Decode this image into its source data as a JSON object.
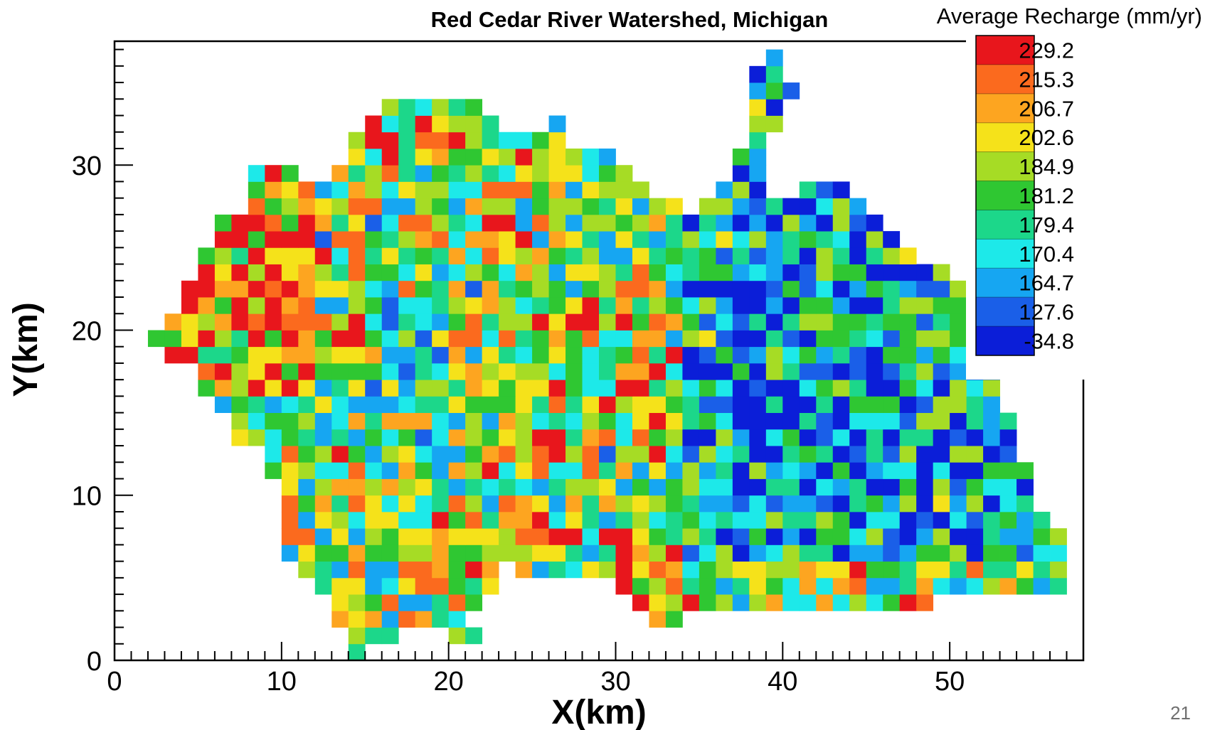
{
  "chart_data": {
    "type": "heatmap",
    "title": "Red Cedar River Watershed, Michigan",
    "xlabel": "X(km)",
    "ylabel": "Y(km)",
    "xlim": [
      0,
      58
    ],
    "ylim": [
      0,
      37.5
    ],
    "x_ticks": [
      0,
      10,
      20,
      30,
      40,
      50
    ],
    "y_ticks": [
      0,
      10,
      20,
      30
    ],
    "cell_size_km": 1,
    "legend": {
      "title": "Average Recharge (mm/yr)",
      "placement": "top-right",
      "levels": [
        "229.2",
        "215.3",
        "206.7",
        "202.6",
        "184.9",
        "181.2",
        "179.4",
        "170.4",
        "164.7",
        "127.6",
        "-34.8"
      ],
      "colors": [
        "#e8161c",
        "#fb6a1e",
        "#fda520",
        "#f5e21a",
        "#a6dc25",
        "#2fc732",
        "#1cd78a",
        "#1de9e9",
        "#16a6f2",
        "#1a5fe8",
        "#0b1ed8"
      ]
    },
    "outline": [
      [
        null,
        null,
        null,
        null,
        null,
        null,
        null,
        null,
        null,
        null,
        null,
        null,
        null,
        null,
        null,
        null,
        null,
        null,
        null,
        null,
        null,
        null,
        null,
        null,
        null,
        null,
        null,
        null,
        null,
        null,
        null,
        null,
        null,
        null,
        null,
        null,
        null,
        [
          39,
          39
        ]
      ],
      [
        null,
        null,
        null,
        null,
        null,
        null,
        null,
        null,
        null,
        null,
        null,
        null,
        null,
        null,
        null,
        null,
        null,
        null,
        null,
        null,
        null,
        null,
        null,
        null,
        null,
        null,
        null,
        null,
        null,
        null,
        null,
        null,
        null,
        null,
        null,
        null,
        null,
        [
          38,
          39
        ]
      ],
      [
        null,
        null,
        null,
        null,
        null,
        null,
        null,
        null,
        null,
        null,
        null,
        null,
        null,
        null,
        null,
        null,
        null,
        null,
        null,
        null,
        null,
        null,
        null,
        null,
        null,
        null,
        null,
        null,
        null,
        null,
        null,
        null,
        null,
        null,
        null,
        null,
        null,
        [
          38,
          40
        ]
      ],
      [
        null,
        null,
        null,
        null,
        null,
        null,
        null,
        null,
        null,
        null,
        null,
        null,
        null,
        null,
        null,
        null,
        null,
        null,
        null,
        null,
        null,
        null,
        null,
        null,
        null,
        null,
        null,
        null,
        null,
        null,
        null,
        null,
        null,
        null,
        null,
        null,
        null,
        [
          16,
          21
        ],
        [
          38,
          39
        ]
      ],
      [
        null,
        null,
        null,
        null,
        null,
        null,
        null,
        null,
        null,
        null,
        null,
        null,
        null,
        null,
        null,
        null,
        null,
        null,
        null,
        null,
        null,
        null,
        null,
        null,
        null,
        null,
        null,
        null,
        null,
        null,
        null,
        null,
        null,
        null,
        null,
        null,
        null,
        [
          15,
          22
        ],
        [
          26,
          26
        ],
        [
          38,
          39
        ]
      ],
      [
        null,
        null,
        null,
        null,
        null,
        null,
        null,
        null,
        null,
        null,
        null,
        null,
        null,
        null,
        null,
        null,
        null,
        null,
        null,
        null,
        null,
        null,
        null,
        null,
        null,
        null,
        null,
        null,
        null,
        null,
        null,
        null,
        null,
        null,
        null,
        null,
        null,
        [
          14,
          26
        ],
        [
          38,
          38
        ]
      ],
      [
        null,
        null,
        null,
        null,
        null,
        null,
        null,
        null,
        null,
        null,
        null,
        null,
        null,
        null,
        null,
        null,
        null,
        null,
        null,
        null,
        null,
        null,
        null,
        null,
        null,
        null,
        null,
        null,
        null,
        null,
        null,
        null,
        null,
        null,
        null,
        null,
        null,
        [
          14,
          29
        ],
        [
          37,
          38
        ]
      ],
      [
        null,
        null,
        null,
        null,
        null,
        null,
        null,
        null,
        null,
        null,
        null,
        null,
        null,
        null,
        null,
        null,
        null,
        null,
        null,
        null,
        null,
        null,
        null,
        null,
        null,
        null,
        null,
        null,
        null,
        null,
        null,
        null,
        null,
        null,
        null,
        null,
        null,
        [
          8,
          10
        ],
        [
          13,
          30
        ],
        [
          37,
          38
        ]
      ],
      [
        null,
        null,
        null,
        null,
        null,
        null,
        null,
        null,
        null,
        null,
        null,
        null,
        null,
        null,
        null,
        null,
        null,
        null,
        null,
        null,
        null,
        null,
        null,
        null,
        null,
        null,
        null,
        null,
        null,
        null,
        null,
        null,
        null,
        null,
        null,
        null,
        null,
        [
          8,
          31
        ],
        [
          36,
          38
        ],
        [
          41,
          43
        ]
      ],
      [
        null,
        null,
        null,
        null,
        null,
        null,
        null,
        null,
        null,
        null,
        null,
        null,
        null,
        null,
        null,
        null,
        null,
        null,
        null,
        null,
        null,
        null,
        null,
        null,
        null,
        null,
        null,
        null,
        null,
        null,
        null,
        null,
        null,
        null,
        null,
        null,
        null,
        [
          8,
          33
        ],
        [
          35,
          44
        ]
      ],
      [
        null,
        null,
        null,
        null,
        null,
        null,
        null,
        null,
        null,
        null,
        null,
        null,
        null,
        null,
        null,
        null,
        null,
        null,
        null,
        null,
        null,
        null,
        null,
        null,
        null,
        null,
        null,
        null,
        null,
        null,
        null,
        null,
        null,
        null,
        null,
        null,
        null,
        [
          6,
          45
        ]
      ],
      [
        null,
        null,
        null,
        null,
        null,
        null,
        null,
        null,
        null,
        null,
        null,
        null,
        null,
        null,
        null,
        null,
        null,
        null,
        null,
        null,
        null,
        null,
        null,
        null,
        null,
        null,
        null,
        null,
        null,
        null,
        null,
        null,
        null,
        null,
        null,
        null,
        null,
        [
          6,
          46
        ]
      ],
      [
        null,
        null,
        null,
        null,
        null,
        null,
        null,
        null,
        null,
        null,
        null,
        null,
        null,
        null,
        null,
        null,
        null,
        null,
        null,
        null,
        null,
        null,
        null,
        null,
        null,
        null,
        null,
        null,
        null,
        null,
        null,
        null,
        null,
        null,
        null,
        null,
        null,
        [
          5,
          47
        ]
      ],
      [
        null,
        null,
        null,
        null,
        null,
        null,
        null,
        null,
        null,
        null,
        null,
        null,
        null,
        null,
        null,
        null,
        null,
        null,
        null,
        null,
        null,
        null,
        null,
        null,
        null,
        null,
        null,
        null,
        null,
        null,
        null,
        null,
        null,
        null,
        null,
        null,
        null,
        [
          5,
          49
        ]
      ],
      [
        null,
        null,
        null,
        null,
        null,
        null,
        null,
        null,
        null,
        null,
        null,
        null,
        null,
        null,
        null,
        null,
        null,
        null,
        null,
        null,
        null,
        null,
        null,
        null,
        null,
        null,
        null,
        null,
        null,
        null,
        null,
        null,
        null,
        null,
        null,
        null,
        null,
        [
          4,
          50
        ]
      ],
      [
        null,
        null,
        null,
        null,
        null,
        null,
        null,
        null,
        null,
        null,
        null,
        null,
        null,
        null,
        null,
        null,
        null,
        null,
        null,
        null,
        null,
        null,
        null,
        null,
        null,
        null,
        null,
        null,
        null,
        null,
        null,
        null,
        null,
        null,
        null,
        null,
        null,
        [
          4,
          51
        ]
      ],
      [
        null,
        null,
        null,
        null,
        null,
        null,
        null,
        null,
        null,
        null,
        null,
        null,
        null,
        null,
        null,
        null,
        null,
        null,
        null,
        null,
        null,
        null,
        null,
        null,
        null,
        null,
        null,
        null,
        null,
        null,
        null,
        null,
        null,
        null,
        null,
        null,
        null,
        [
          3,
          52
        ]
      ],
      [
        null,
        null,
        null,
        null,
        null,
        null,
        null,
        null,
        null,
        null,
        null,
        null,
        null,
        null,
        null,
        null,
        null,
        null,
        null,
        null,
        null,
        null,
        null,
        null,
        null,
        null,
        null,
        null,
        null,
        null,
        null,
        null,
        null,
        null,
        null,
        null,
        null,
        [
          2,
          52
        ]
      ],
      [
        null,
        null,
        null,
        null,
        null,
        null,
        null,
        null,
        null,
        null,
        null,
        null,
        null,
        null,
        null,
        null,
        null,
        null,
        null,
        null,
        null,
        null,
        null,
        null,
        null,
        null,
        null,
        null,
        null,
        null,
        null,
        null,
        null,
        null,
        null,
        null,
        null,
        [
          3,
          52
        ]
      ],
      [
        null,
        null,
        null,
        null,
        null,
        null,
        null,
        null,
        null,
        null,
        null,
        null,
        null,
        null,
        null,
        null,
        null,
        null,
        null,
        null,
        null,
        null,
        null,
        null,
        null,
        null,
        null,
        null,
        null,
        null,
        null,
        null,
        null,
        null,
        null,
        null,
        null,
        [
          5,
          52
        ]
      ],
      [
        null,
        null,
        null,
        null,
        null,
        null,
        null,
        null,
        null,
        null,
        null,
        null,
        null,
        null,
        null,
        null,
        null,
        null,
        null,
        null,
        null,
        null,
        null,
        null,
        null,
        null,
        null,
        null,
        null,
        null,
        null,
        null,
        null,
        null,
        null,
        null,
        null,
        [
          5,
          52
        ]
      ]
    ]
  },
  "page_number": "21"
}
